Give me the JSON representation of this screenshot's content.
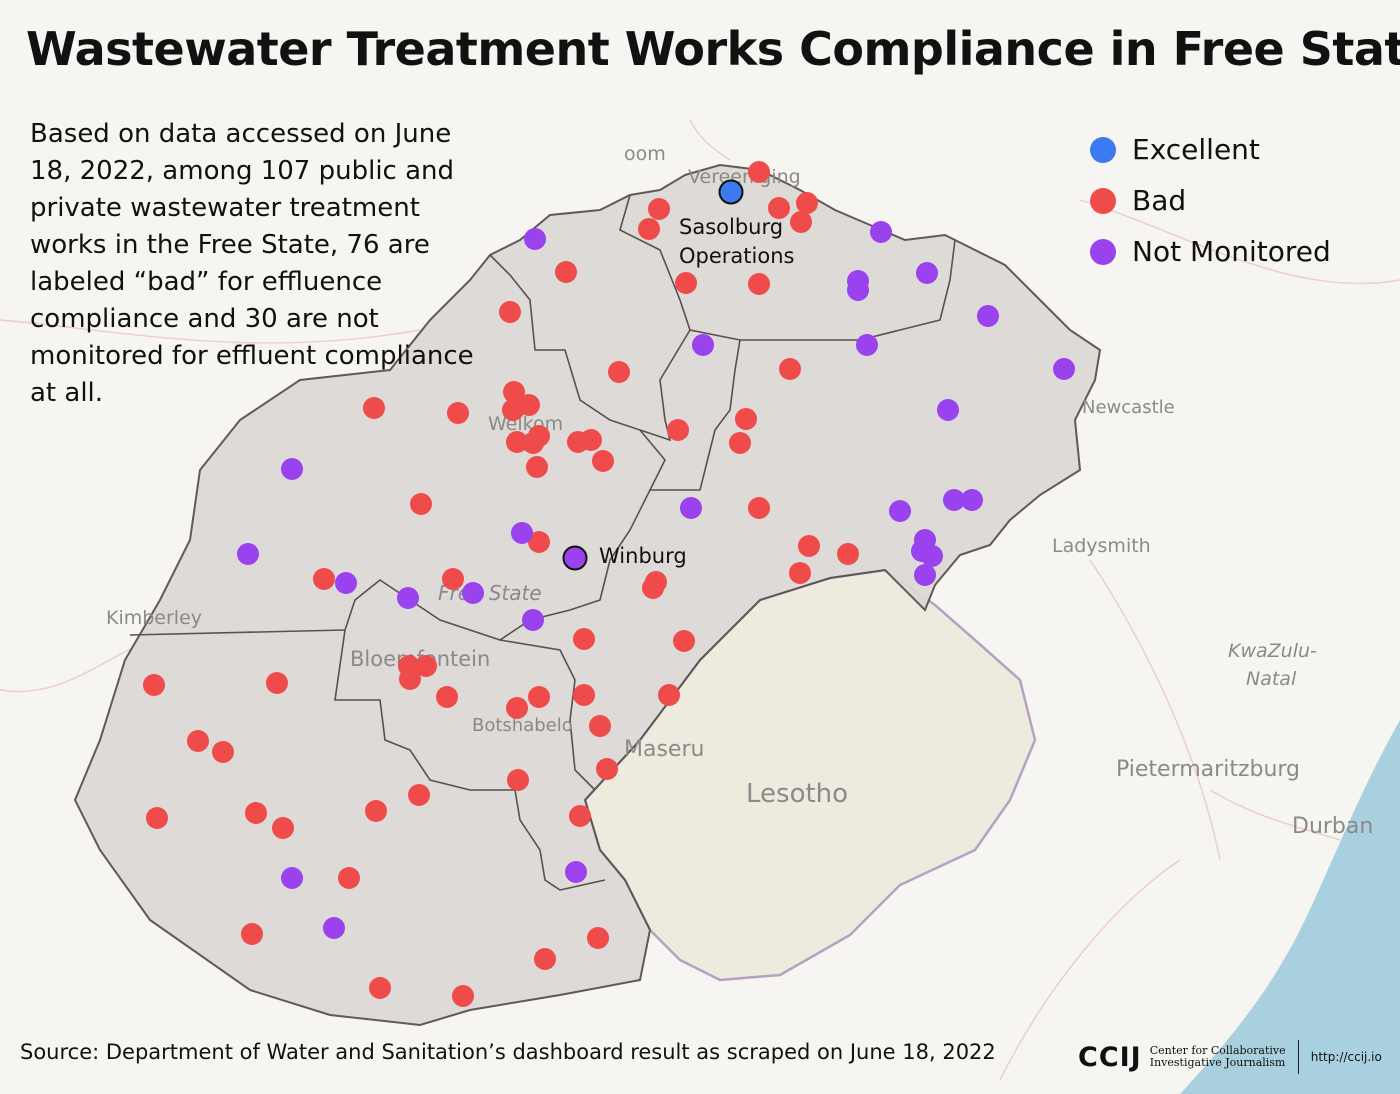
{
  "title": "Wastewater Treatment Works Compliance in Free State",
  "description": "Based on data accessed on June 18, 2022, among 107 public and private wastewater treatment works in the Free State, 76 are labeled “bad” for effluence compliance and 30 are not monitored for effluent compliance at all.",
  "legend": [
    {
      "label": "Excellent",
      "color": "#3b7af0"
    },
    {
      "label": "Bad",
      "color": "#ef4b4b"
    },
    {
      "label": "Not Monitored",
      "color": "#9b42ef"
    }
  ],
  "labeled_points": [
    {
      "label_line1": "Sasolburg",
      "label_line2": "Operations",
      "status": "Excellent"
    },
    {
      "label_line1": "Winburg",
      "label_line2": "",
      "status": "Not Monitored"
    }
  ],
  "basemap_labels": {
    "vereeniging": "Vereeniging",
    "room": "oom",
    "welkom": "Welkom",
    "free_state": "Free State",
    "kimberley": "Kimberley",
    "bloemfontein": "Bloemfontein",
    "botshabelo": "Botshabelo",
    "maseru": "Maseru",
    "lesotho": "Lesotho",
    "newcastle": "Newcastle",
    "ladysmith": "Ladysmith",
    "kwazulu": "KwaZulu-",
    "natal": "Natal",
    "pietermaritzburg": "Pietermaritzburg",
    "durban": "Durban"
  },
  "source": "Source: Department of Water and Sanitation’s dashboard result as scraped on June 18, 2022",
  "logo": {
    "mark": "CCIJ",
    "name_line1": "Center for Collaborative",
    "name_line2": "Investigative Journalism",
    "url": "http://ccij.io"
  },
  "colors": {
    "region_fill": "#dcd9d6",
    "lesotho_fill": "#ecebdd",
    "ocean": "#a9d0de",
    "border": "#5a5050"
  }
}
